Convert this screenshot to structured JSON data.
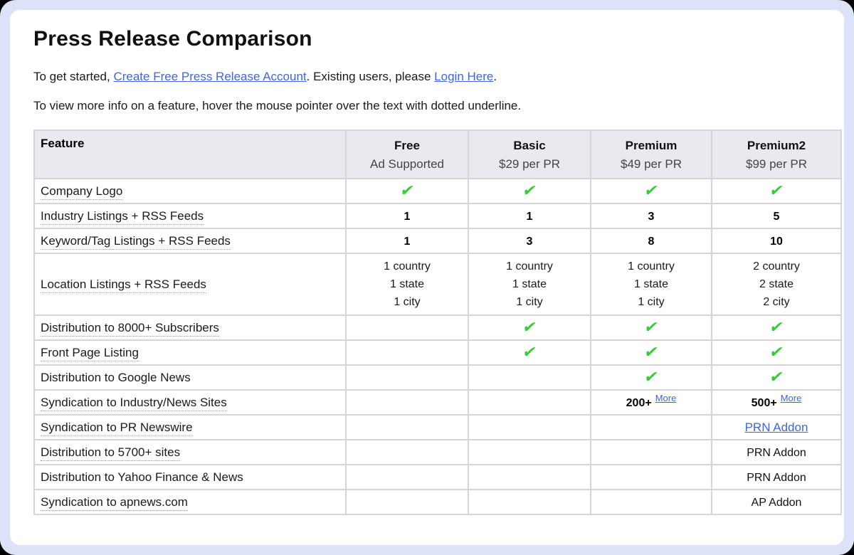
{
  "colors": {
    "frame_background": "#dce3f8",
    "link_blue": "#4165e0",
    "check_green": "#2fd02f",
    "header_row_background": "#e9eaef",
    "grid_line": "#d5d5d8"
  },
  "header": {
    "title": "Press Release Comparison"
  },
  "intro": {
    "prefix": "To get started, ",
    "create_link": "Create Free Press Release Account",
    "middle": ". Existing users, please ",
    "login_link": "Login Here",
    "suffix": "."
  },
  "hint": "To view more info on a feature, hover the mouse pointer over the text with dotted underline.",
  "table": {
    "check_glyph": "✔",
    "feature_header": "Feature",
    "plans": [
      {
        "name": "Free",
        "price": "Ad Supported"
      },
      {
        "name": "Basic",
        "price": "$29 per PR"
      },
      {
        "name": "Premium",
        "price": "$49 per PR"
      },
      {
        "name": "Premium2",
        "price": "$99 per PR"
      }
    ],
    "rows": [
      {
        "feature": "Company Logo",
        "dotted": true,
        "cells": [
          {
            "type": "check"
          },
          {
            "type": "check"
          },
          {
            "type": "check"
          },
          {
            "type": "check"
          }
        ]
      },
      {
        "feature": "Industry Listings + RSS Feeds",
        "dotted": true,
        "cells": [
          {
            "type": "bold",
            "text": "1"
          },
          {
            "type": "bold",
            "text": "1"
          },
          {
            "type": "bold",
            "text": "3"
          },
          {
            "type": "bold",
            "text": "5"
          }
        ]
      },
      {
        "feature": "Keyword/Tag Listings + RSS Feeds",
        "dotted": true,
        "cells": [
          {
            "type": "bold",
            "text": "1"
          },
          {
            "type": "bold",
            "text": "3"
          },
          {
            "type": "bold",
            "text": "8"
          },
          {
            "type": "bold",
            "text": "10"
          }
        ]
      },
      {
        "feature": "Location Listings + RSS Feeds",
        "dotted": true,
        "cells": [
          {
            "type": "lines",
            "lines": [
              "1 country",
              "1 state",
              "1 city"
            ]
          },
          {
            "type": "lines",
            "lines": [
              "1 country",
              "1 state",
              "1 city"
            ]
          },
          {
            "type": "lines",
            "lines": [
              "1 country",
              "1 state",
              "1 city"
            ]
          },
          {
            "type": "lines",
            "lines": [
              "2 country",
              "2 state",
              "2 city"
            ]
          }
        ]
      },
      {
        "feature": "Distribution to 8000+ Subscribers",
        "dotted": true,
        "cells": [
          {
            "type": "empty"
          },
          {
            "type": "check"
          },
          {
            "type": "check"
          },
          {
            "type": "check"
          }
        ]
      },
      {
        "feature": "Front Page Listing",
        "dotted": true,
        "cells": [
          {
            "type": "empty"
          },
          {
            "type": "check"
          },
          {
            "type": "check"
          },
          {
            "type": "check"
          }
        ]
      },
      {
        "feature": "Distribution to Google News",
        "dotted": false,
        "cells": [
          {
            "type": "empty"
          },
          {
            "type": "empty"
          },
          {
            "type": "check"
          },
          {
            "type": "check"
          }
        ]
      },
      {
        "feature": "Syndication to Industry/News Sites",
        "dotted": true,
        "cells": [
          {
            "type": "empty"
          },
          {
            "type": "empty"
          },
          {
            "type": "more",
            "value": "200+",
            "link": "More"
          },
          {
            "type": "more",
            "value": "500+",
            "link": "More"
          }
        ]
      },
      {
        "feature": "Syndication to PR Newswire",
        "dotted": true,
        "cells": [
          {
            "type": "empty"
          },
          {
            "type": "empty"
          },
          {
            "type": "empty"
          },
          {
            "type": "link",
            "text": "PRN Addon"
          }
        ]
      },
      {
        "feature": "Distribution to 5700+ sites",
        "dotted": true,
        "cells": [
          {
            "type": "empty"
          },
          {
            "type": "empty"
          },
          {
            "type": "empty"
          },
          {
            "type": "text",
            "text": "PRN Addon"
          }
        ]
      },
      {
        "feature": "Distribution to Yahoo Finance & News",
        "dotted": false,
        "cells": [
          {
            "type": "empty"
          },
          {
            "type": "empty"
          },
          {
            "type": "empty"
          },
          {
            "type": "text",
            "text": "PRN Addon"
          }
        ]
      },
      {
        "feature": "Syndication to apnews.com",
        "dotted": true,
        "cells": [
          {
            "type": "empty"
          },
          {
            "type": "empty"
          },
          {
            "type": "empty"
          },
          {
            "type": "text",
            "text": "AP Addon"
          }
        ]
      }
    ]
  }
}
